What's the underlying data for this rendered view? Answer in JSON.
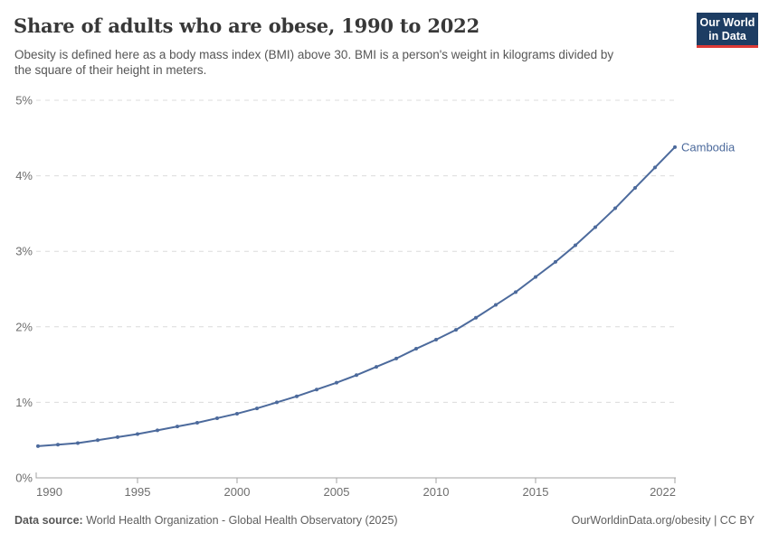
{
  "header": {
    "title": "Share of adults who are obese, 1990 to 2022",
    "subtitle": "Obesity is defined here as a body mass index (BMI) above 30. BMI is a person's weight in kilograms divided by the square of their height in meters.",
    "subtitle_lines": [
      "Obesity is defined here as a body mass index (BMI) above 30. BMI is a person's weight in kilograms divided by",
      "the square of their height in meters."
    ],
    "logo": {
      "line1": "Our World",
      "line2": "in Data",
      "bg_color": "#1d3d63",
      "accent_color": "#dc3936"
    }
  },
  "chart_data": {
    "type": "line",
    "title": "Share of adults who are obese, 1990 to 2022",
    "xlabel": "",
    "ylabel": "",
    "xlim": [
      1990,
      2022
    ],
    "ylim": [
      0,
      5
    ],
    "grid": "horizontal-dashed",
    "legend": "end-of-line-label",
    "x": [
      1990,
      1991,
      1992,
      1993,
      1994,
      1995,
      1996,
      1997,
      1998,
      1999,
      2000,
      2001,
      2002,
      2003,
      2004,
      2005,
      2006,
      2007,
      2008,
      2009,
      2010,
      2011,
      2012,
      2013,
      2014,
      2015,
      2016,
      2017,
      2018,
      2019,
      2020,
      2021,
      2022
    ],
    "series": [
      {
        "name": "Cambodia",
        "color": "#4c6a9c",
        "values": [
          0.42,
          0.44,
          0.46,
          0.5,
          0.54,
          0.58,
          0.63,
          0.68,
          0.73,
          0.79,
          0.85,
          0.92,
          1.0,
          1.08,
          1.17,
          1.26,
          1.36,
          1.47,
          1.58,
          1.71,
          1.83,
          1.96,
          2.12,
          2.29,
          2.46,
          2.66,
          2.86,
          3.08,
          3.32,
          3.57,
          3.84,
          4.11,
          4.38
        ]
      }
    ],
    "xticks": [
      {
        "value": 1990,
        "label": "1990"
      },
      {
        "value": 1995,
        "label": "1995"
      },
      {
        "value": 2000,
        "label": "2000"
      },
      {
        "value": 2005,
        "label": "2005"
      },
      {
        "value": 2010,
        "label": "2010"
      },
      {
        "value": 2015,
        "label": "2015"
      },
      {
        "value": 2022,
        "label": "2022"
      }
    ],
    "yticks": [
      {
        "value": 0,
        "label": "0%"
      },
      {
        "value": 1,
        "label": "1%"
      },
      {
        "value": 2,
        "label": "2%"
      },
      {
        "value": 3,
        "label": "3%"
      },
      {
        "value": 4,
        "label": "4%"
      },
      {
        "value": 5,
        "label": "5%"
      }
    ],
    "colors": {
      "gridline": "#dcdcdc",
      "axis": "#a3a3a3",
      "tick_label": "#6e6e6e"
    }
  },
  "footer": {
    "source_label": "Data source:",
    "source_text": " World Health Organization - Global Health Observatory (2025)",
    "right_text": "OurWorldinData.org/obesity | CC BY"
  }
}
